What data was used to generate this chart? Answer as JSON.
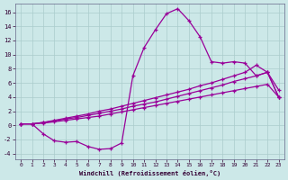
{
  "background_color": "#cce8e8",
  "grid_color": "#aacccc",
  "line_color": "#990099",
  "xlabel": "Windchill (Refroidissement éolien,°C)",
  "xlim": [
    -0.5,
    23.5
  ],
  "ylim": [
    -4.8,
    17.2
  ],
  "xticks": [
    0,
    1,
    2,
    3,
    4,
    5,
    6,
    7,
    8,
    9,
    10,
    11,
    12,
    13,
    14,
    15,
    16,
    17,
    18,
    19,
    20,
    21,
    22,
    23
  ],
  "yticks": [
    -4,
    -2,
    0,
    2,
    4,
    6,
    8,
    10,
    12,
    14,
    16
  ],
  "curve1_x": [
    0,
    1,
    2,
    3,
    4,
    5,
    6,
    7,
    8,
    9,
    10,
    11,
    12,
    13,
    14,
    15,
    16,
    17,
    18,
    19,
    20,
    21,
    22,
    23
  ],
  "curve1_y": [
    0.2,
    0.2,
    -1.2,
    -2.2,
    -2.4,
    -2.3,
    -3.0,
    -3.4,
    -3.3,
    -2.5,
    7.0,
    11.0,
    13.5,
    15.8,
    16.5,
    14.8,
    12.5,
    9.0,
    8.8,
    9.0,
    8.8,
    7.0,
    7.5,
    5.0
  ],
  "curve2_x": [
    0,
    1,
    2,
    3,
    4,
    5,
    6,
    7,
    8,
    9,
    10,
    11,
    12,
    13,
    14,
    15,
    16,
    17,
    18,
    19,
    20,
    21,
    22,
    23
  ],
  "curve2_y": [
    0.2,
    0.2,
    0.3,
    0.5,
    0.7,
    0.9,
    1.1,
    1.3,
    1.6,
    1.9,
    2.2,
    2.5,
    2.8,
    3.1,
    3.4,
    3.7,
    4.0,
    4.3,
    4.6,
    4.9,
    5.2,
    5.5,
    5.8,
    4.0
  ],
  "curve3_x": [
    0,
    1,
    2,
    3,
    4,
    5,
    6,
    7,
    8,
    9,
    10,
    11,
    12,
    13,
    14,
    15,
    16,
    17,
    18,
    19,
    20,
    21,
    22,
    23
  ],
  "curve3_y": [
    0.2,
    0.2,
    0.4,
    0.6,
    0.9,
    1.1,
    1.4,
    1.7,
    2.0,
    2.3,
    2.7,
    3.0,
    3.3,
    3.7,
    4.1,
    4.5,
    4.9,
    5.3,
    5.7,
    6.2,
    6.6,
    7.0,
    7.5,
    4.0
  ],
  "curve4_x": [
    0,
    1,
    2,
    3,
    4,
    5,
    6,
    7,
    8,
    9,
    10,
    11,
    12,
    13,
    14,
    15,
    16,
    17,
    18,
    19,
    20,
    21,
    22,
    23
  ],
  "curve4_y": [
    0.2,
    0.2,
    0.4,
    0.7,
    1.0,
    1.3,
    1.6,
    2.0,
    2.3,
    2.7,
    3.1,
    3.5,
    3.9,
    4.3,
    4.7,
    5.1,
    5.6,
    6.0,
    6.5,
    7.0,
    7.5,
    8.5,
    7.5,
    4.0
  ]
}
